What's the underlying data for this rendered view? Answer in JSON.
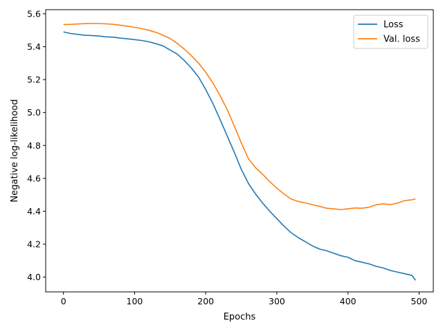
{
  "chart_data": {
    "type": "line",
    "title": "",
    "xlabel": "Epochs",
    "ylabel": "Negative log-likelihood",
    "xlim": [
      -25,
      520
    ],
    "ylim": [
      3.91,
      5.625
    ],
    "xticks": [
      0,
      100,
      200,
      300,
      400,
      500
    ],
    "yticks": [
      4.0,
      4.2,
      4.4,
      4.6,
      4.8,
      5.0,
      5.2,
      5.4,
      5.6
    ],
    "grid": false,
    "legend_position": "top-right",
    "series": [
      {
        "name": "Loss",
        "color": "#1f77b4",
        "x": [
          0,
          10,
          20,
          30,
          40,
          50,
          60,
          70,
          80,
          90,
          100,
          110,
          120,
          130,
          140,
          150,
          160,
          170,
          180,
          190,
          200,
          210,
          220,
          230,
          240,
          250,
          260,
          270,
          280,
          290,
          300,
          310,
          320,
          330,
          340,
          350,
          360,
          370,
          380,
          390,
          400,
          410,
          420,
          430,
          440,
          450,
          460,
          470,
          480,
          490,
          495
        ],
        "y": [
          5.49,
          5.48,
          5.475,
          5.47,
          5.468,
          5.465,
          5.46,
          5.458,
          5.452,
          5.448,
          5.443,
          5.438,
          5.43,
          5.418,
          5.405,
          5.38,
          5.355,
          5.315,
          5.27,
          5.215,
          5.14,
          5.055,
          4.96,
          4.86,
          4.76,
          4.655,
          4.57,
          4.505,
          4.45,
          4.4,
          4.355,
          4.31,
          4.27,
          4.24,
          4.215,
          4.19,
          4.17,
          4.16,
          4.145,
          4.13,
          4.12,
          4.1,
          4.09,
          4.08,
          4.065,
          4.055,
          4.04,
          4.03,
          4.02,
          4.01,
          3.98
        ]
      },
      {
        "name": "Val. loss",
        "color": "#ff7f0e",
        "x": [
          0,
          10,
          20,
          30,
          40,
          50,
          60,
          70,
          80,
          90,
          100,
          110,
          120,
          130,
          140,
          150,
          160,
          170,
          180,
          190,
          200,
          210,
          220,
          230,
          240,
          250,
          260,
          270,
          280,
          290,
          300,
          310,
          320,
          330,
          340,
          350,
          360,
          370,
          380,
          390,
          400,
          410,
          420,
          430,
          440,
          450,
          460,
          470,
          480,
          490,
          495
        ],
        "y": [
          5.535,
          5.536,
          5.538,
          5.54,
          5.541,
          5.541,
          5.539,
          5.536,
          5.531,
          5.525,
          5.518,
          5.51,
          5.5,
          5.487,
          5.47,
          5.45,
          5.42,
          5.385,
          5.345,
          5.3,
          5.245,
          5.18,
          5.105,
          5.02,
          4.92,
          4.815,
          4.72,
          4.665,
          4.625,
          4.58,
          4.54,
          4.505,
          4.475,
          4.46,
          4.45,
          4.44,
          4.43,
          4.418,
          4.415,
          4.41,
          4.415,
          4.42,
          4.418,
          4.425,
          4.44,
          4.445,
          4.44,
          4.45,
          4.465,
          4.47,
          4.475
        ]
      }
    ]
  }
}
